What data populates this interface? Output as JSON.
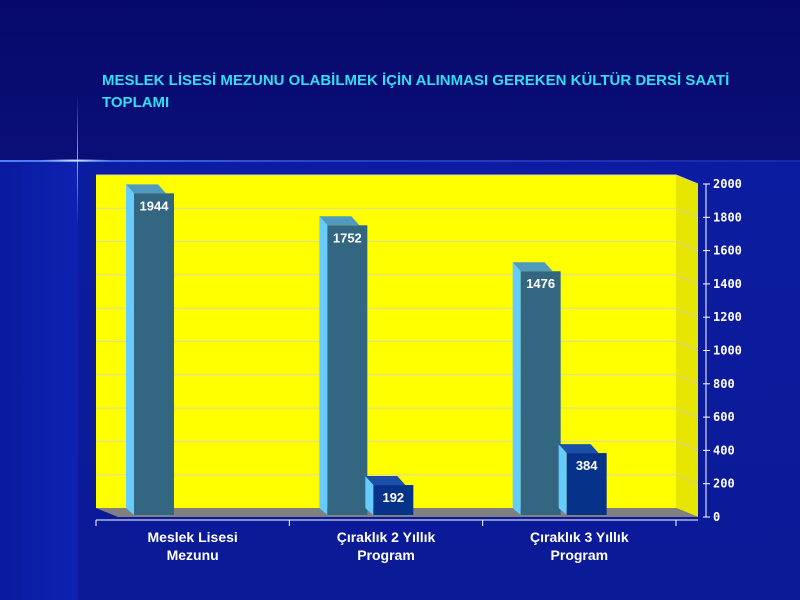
{
  "slide": {
    "title": "MESLEK LİSESİ MEZUNU OLABİLMEK İÇİN ALINMASI GEREKEN KÜLTÜR DERSİ SAATİ TOPLAMI"
  },
  "chart_data": {
    "type": "bar",
    "title": "MESLEK LİSESİ MEZUNU OLABİLMEK İÇİN ALINMASI GEREKEN KÜLTÜR DERSİ SAATİ TOPLAMI",
    "categories": [
      "Meslek Lisesi Mezunu",
      "Çıraklık 2 Yıllık Program",
      "Çıraklık 3 Yıllık Program"
    ],
    "category_lines": [
      [
        "Meslek Lisesi",
        "Mezunu"
      ],
      [
        "Çıraklık 2 Yıllık",
        "Program"
      ],
      [
        "Çıraklık 3 Yıllık",
        "Program"
      ]
    ],
    "series": [
      {
        "values": [
          1944,
          1752,
          1476
        ],
        "value_labels": [
          "1944",
          "1752",
          "1476"
        ],
        "color": "#336680"
      },
      {
        "values": [
          0,
          192,
          384
        ],
        "value_labels": [
          "",
          "192",
          "384"
        ],
        "color": "#06328a"
      }
    ],
    "ylim": [
      0,
      2000
    ],
    "yticks": [
      0,
      200,
      400,
      600,
      800,
      1000,
      1200,
      1400,
      1600,
      1800,
      2000
    ],
    "ytick_labels": [
      "0",
      "200",
      "400",
      "600",
      "800",
      "1000",
      "1200",
      "1400",
      "1600",
      "1800",
      "2000"
    ],
    "xlabel": "",
    "ylabel": "",
    "grid": true,
    "legend": "none",
    "colors": {
      "plot_background": "#ffff00",
      "bar_side": "#66ccff",
      "bar_top": "#4f9bbf",
      "floor": "#808080",
      "label_text": "#ffffff"
    }
  }
}
